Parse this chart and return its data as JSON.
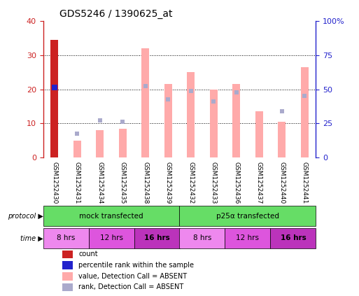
{
  "title": "GDS5246 / 1390625_at",
  "samples": [
    "GSM1252430",
    "GSM1252431",
    "GSM1252434",
    "GSM1252435",
    "GSM1252438",
    "GSM1252439",
    "GSM1252432",
    "GSM1252433",
    "GSM1252436",
    "GSM1252437",
    "GSM1252440",
    "GSM1252441"
  ],
  "count_values": [
    34.5,
    0,
    0,
    0,
    0,
    0,
    0,
    0,
    0,
    0,
    0,
    0
  ],
  "rank_values": [
    20.5,
    0,
    0,
    0,
    0,
    0,
    0,
    0,
    0,
    0,
    0,
    0
  ],
  "pink_bar_values": [
    0,
    5,
    8,
    8.5,
    32,
    21.5,
    25,
    20,
    21.5,
    13.5,
    10.5,
    26.5
  ],
  "blue_sq_values": [
    0,
    7,
    11,
    10.5,
    21,
    17,
    19.5,
    16.5,
    19,
    0,
    13.5,
    18
  ],
  "blue_sq_show": [
    false,
    true,
    true,
    true,
    true,
    true,
    true,
    true,
    true,
    false,
    true,
    true
  ],
  "ylim_left": [
    0,
    40
  ],
  "ylim_right": [
    0,
    100
  ],
  "yticks_left": [
    0,
    10,
    20,
    30,
    40
  ],
  "yticks_right": [
    0,
    25,
    50,
    75,
    100
  ],
  "yticklabels_right": [
    "0",
    "25",
    "50",
    "75",
    "100%"
  ],
  "count_color": "#cc2222",
  "rank_color": "#2222cc",
  "pink_color": "#ffaaaa",
  "blue_sq_color": "#aaaacc",
  "axis_bg": "#ffffff",
  "sample_bg": "#cccccc",
  "proto_color": "#66dd66",
  "time_color_8": "#ee88ee",
  "time_color_12": "#dd55dd",
  "time_color_16": "#bb33bb",
  "legend_items": [
    {
      "label": "count",
      "color": "#cc2222"
    },
    {
      "label": "percentile rank within the sample",
      "color": "#2222cc"
    },
    {
      "label": "value, Detection Call = ABSENT",
      "color": "#ffaaaa"
    },
    {
      "label": "rank, Detection Call = ABSENT",
      "color": "#aaaacc"
    }
  ]
}
